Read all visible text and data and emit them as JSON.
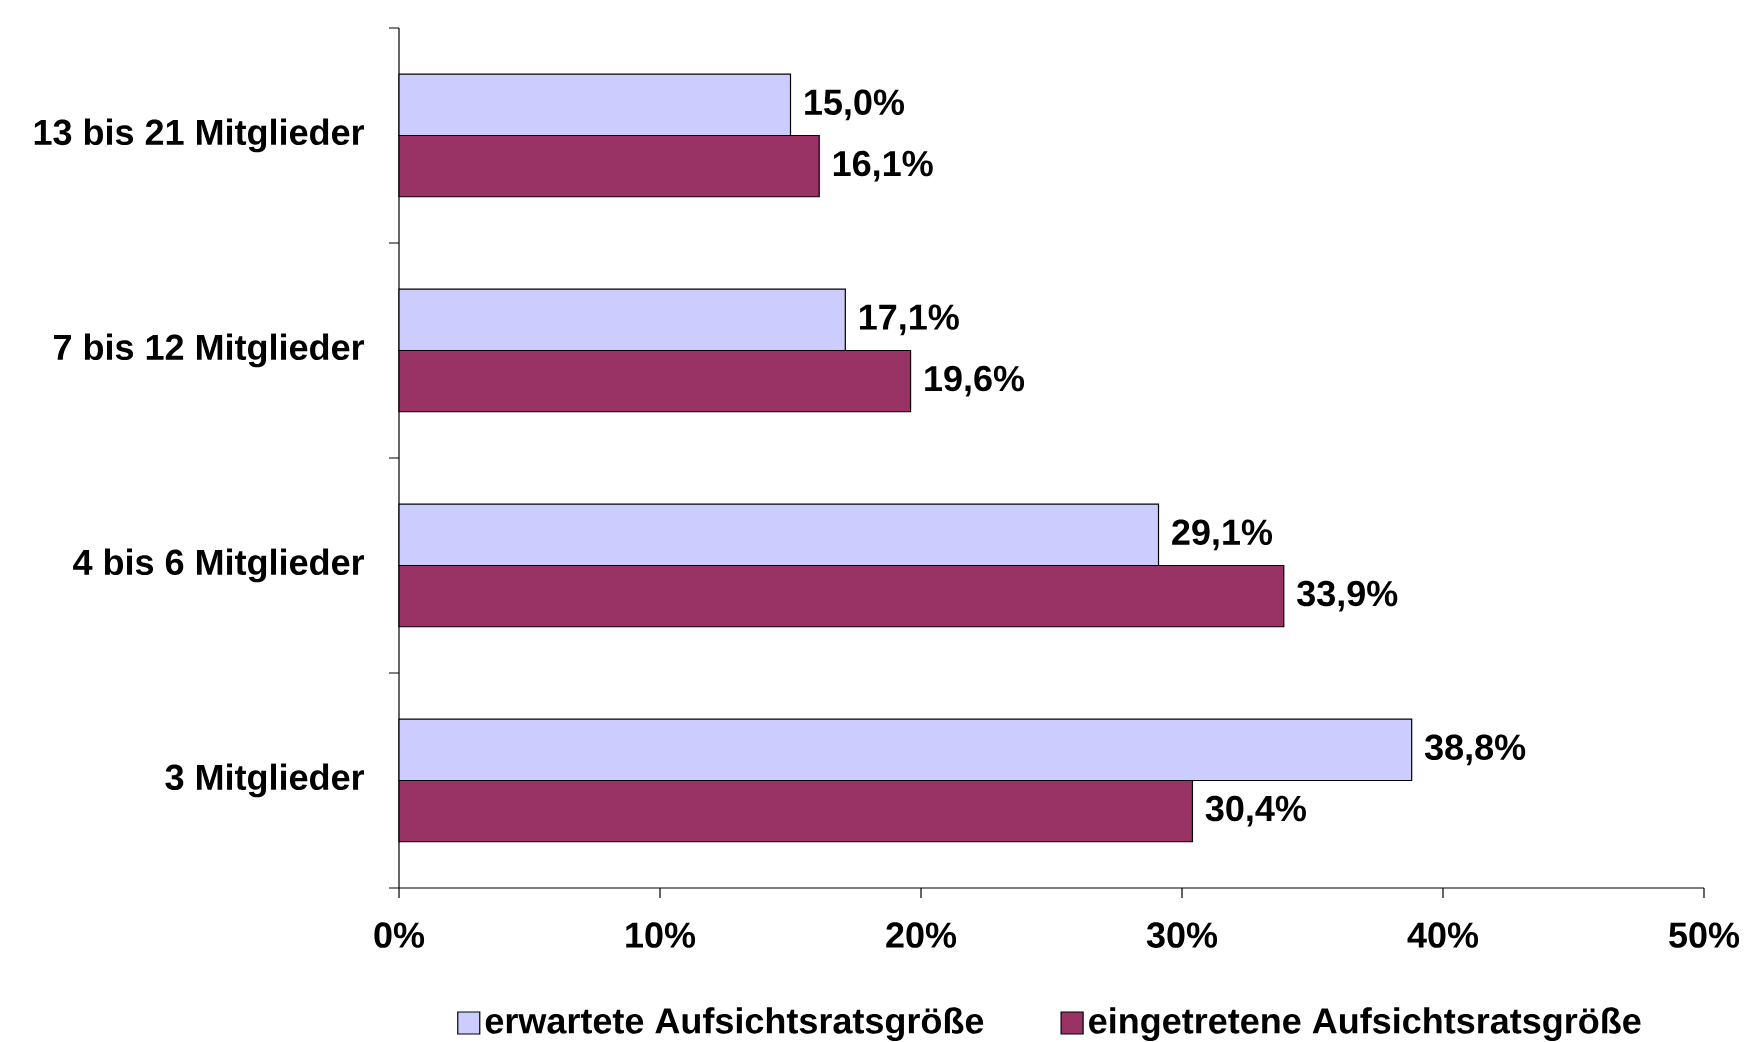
{
  "chart_data": {
    "type": "bar",
    "orientation": "horizontal",
    "categories": [
      "13 bis 21 Mitglieder",
      "7 bis 12 Mitglieder",
      "4 bis 6 Mitglieder",
      "3 Mitglieder"
    ],
    "series": [
      {
        "name": "erwartete Aufsichtsratsgröße",
        "color": "#ccccff",
        "values": [
          15.0,
          17.1,
          29.1,
          38.8
        ],
        "value_labels": [
          "15,0%",
          "17,1%",
          "29,1%",
          "38,8%"
        ]
      },
      {
        "name": "eingetretene Aufsichtsratsgröße",
        "color": "#993366",
        "values": [
          16.1,
          19.6,
          33.9,
          30.4
        ],
        "value_labels": [
          "16,1%",
          "19,6%",
          "33,9%",
          "30,4%"
        ]
      }
    ],
    "xlim": [
      0,
      50
    ],
    "xticks": [
      {
        "value": 0,
        "label": "0%"
      },
      {
        "value": 10,
        "label": "10%"
      },
      {
        "value": 20,
        "label": "20%"
      },
      {
        "value": 30,
        "label": "30%"
      },
      {
        "value": 40,
        "label": "40%"
      },
      {
        "value": 50,
        "label": "50%"
      }
    ],
    "legend": "bottom"
  }
}
